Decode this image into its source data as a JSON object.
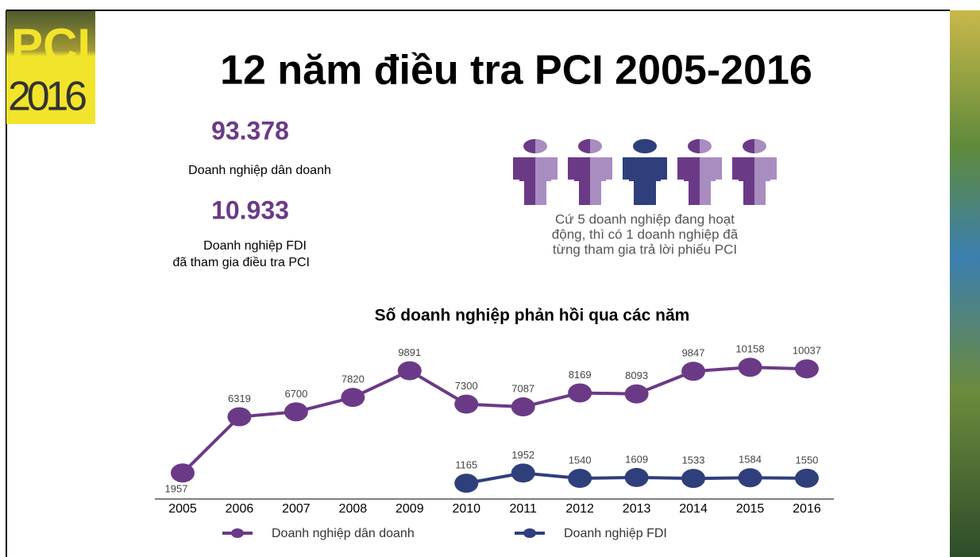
{
  "logo": {
    "brand": "PCI",
    "year": "2016"
  },
  "title": "12 năm điều tra PCI 2005-2016",
  "stats": [
    {
      "value": "93.378",
      "label": [
        "Doanh nghiệp dân doanh"
      ]
    },
    {
      "value": "10.933",
      "label": [
        "Doanh nghiệp FDI",
        "đã tham gia điều tra PCI"
      ]
    }
  ],
  "infographic_caption": [
    "Cứ 5 doanh nghiệp đang hoạt",
    "động, thì có 1 doanh nghiệp đã",
    "từng tham gia trả lời phiếu PCI"
  ],
  "chart_data": {
    "type": "line",
    "title": "Số doanh nghiệp phản hồi qua các năm",
    "categories": [
      "2005",
      "2006",
      "2007",
      "2008",
      "2009",
      "2010",
      "2011",
      "2012",
      "2013",
      "2014",
      "2015",
      "2016"
    ],
    "series": [
      {
        "name": "Doanh nghiệp dân doanh",
        "color": "#6b3a87",
        "values": [
          1957,
          6319,
          6700,
          7820,
          9891,
          7300,
          7087,
          8169,
          8093,
          9847,
          10158,
          10037
        ]
      },
      {
        "name": "Doanh nghiệp FDI",
        "color": "#2f3f7c",
        "values": [
          null,
          null,
          null,
          null,
          null,
          1165,
          1952,
          1540,
          1609,
          1533,
          1584,
          1550
        ]
      }
    ]
  }
}
